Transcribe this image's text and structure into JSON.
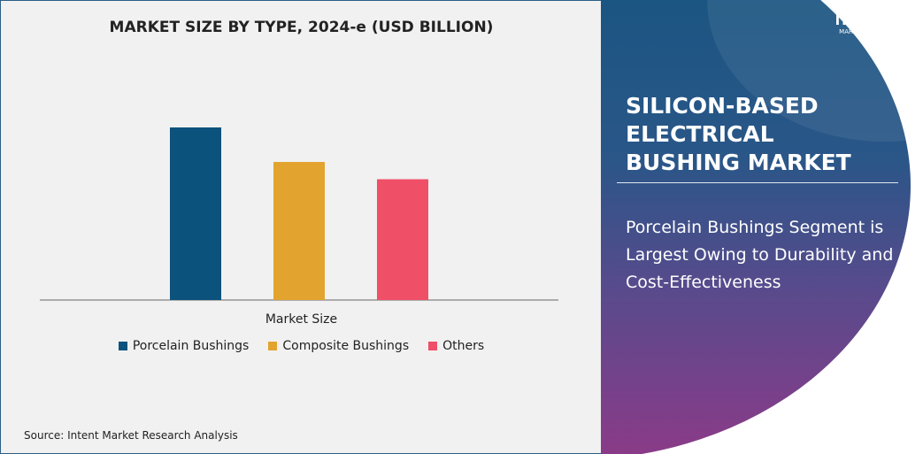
{
  "chart_data": {
    "type": "bar",
    "title": "MARKET SIZE BY TYPE, 2024-e (USD BILLION)",
    "xlabel": "Market Size",
    "ylabel": "",
    "categories": [
      "Market Size"
    ],
    "series": [
      {
        "name": "Porcelain Bushings",
        "values": [
          1.0
        ],
        "color": "#0b527c"
      },
      {
        "name": "Composite Bushings",
        "values": [
          0.8
        ],
        "color": "#e2a42e"
      },
      {
        "name": "Others",
        "values": [
          0.7
        ],
        "color": "#ef4f67"
      }
    ],
    "value_note_relative": true,
    "ylim": [
      0,
      1.0
    ],
    "grid": false,
    "legend": "bottom"
  },
  "source": "Source: Intent Market Research Analysis",
  "logo": {
    "brand": "INTENT",
    "sub": "MARKET RESEARCH"
  },
  "panel": {
    "heading": "SILICON-BASED ELECTRICAL BUSHING MARKET",
    "description": "Porcelain Bushings Segment is Largest Owing to Durability and Cost-Effectiveness"
  }
}
